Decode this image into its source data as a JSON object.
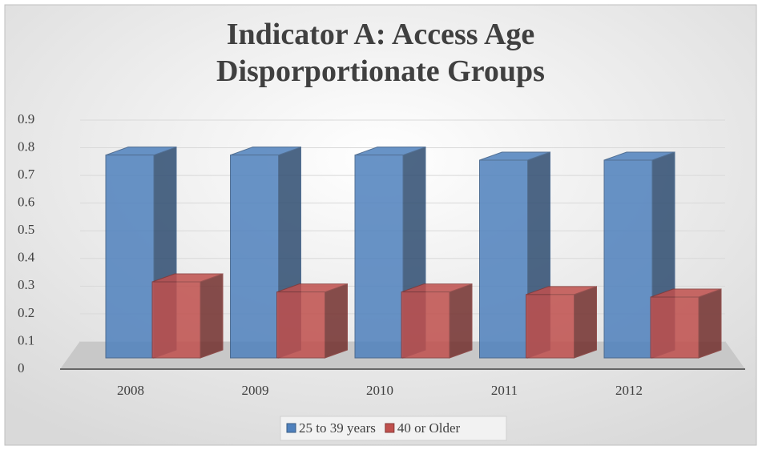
{
  "chart_data": {
    "type": "bar3d",
    "title": "Indicator A: Access Age Disporportionate Groups",
    "categories": [
      "2008",
      "2009",
      "2010",
      "2011",
      "2012"
    ],
    "series": [
      {
        "name": "25 to 39 years",
        "color": "#4f81bd",
        "values": [
          0.8,
          0.8,
          0.8,
          0.78,
          0.78
        ]
      },
      {
        "name": "40 or Older",
        "color": "#c0504d",
        "values": [
          0.3,
          0.26,
          0.26,
          0.25,
          0.24
        ]
      }
    ],
    "ylim": [
      0,
      0.9
    ],
    "yticks": [
      0,
      0.1,
      0.2,
      0.3,
      0.4,
      0.5,
      0.6,
      0.7,
      0.8,
      0.9
    ],
    "grid": true,
    "legend": "bottom"
  }
}
